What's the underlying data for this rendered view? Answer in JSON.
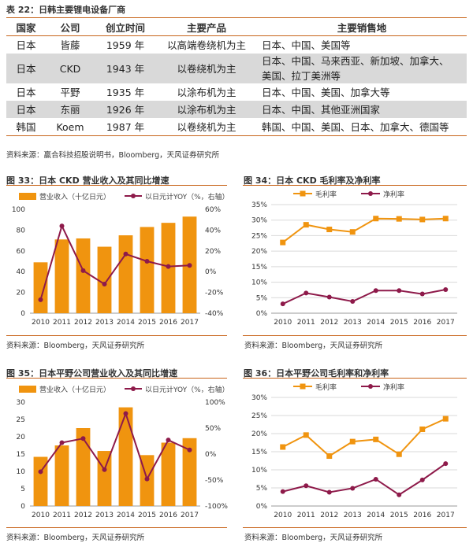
{
  "table": {
    "title": "表 22：日韩主要锂电设备厂商",
    "headers": [
      "国家",
      "公司",
      "创立时间",
      "主要产品",
      "主要销售地"
    ],
    "rows": [
      {
        "country": "日本",
        "company": "皆藤",
        "founded": "1959 年",
        "product": "以高端卷绕机为主",
        "markets": [
          "日本、中国、美国等"
        ],
        "shade": false
      },
      {
        "country": "日本",
        "company": "CKD",
        "founded": "1943 年",
        "product": "以卷绕机为主",
        "markets": [
          "日本、中国、马来西亚、新加坡、加拿大、",
          "美国、拉丁美洲等"
        ],
        "shade": true
      },
      {
        "country": "日本",
        "company": "平野",
        "founded": "1935 年",
        "product": "以涂布机为主",
        "markets": [
          "日本、中国、美国、加拿大等"
        ],
        "shade": false
      },
      {
        "country": "日本",
        "company": "东丽",
        "founded": "1926 年",
        "product": "以涂布机为主",
        "markets": [
          "日本、中国、其他亚洲国家"
        ],
        "shade": true
      },
      {
        "country": "韩国",
        "company": "Koem",
        "founded": "1987 年",
        "product": "以卷绕机为主",
        "markets": [
          "韩国、中国、美国、日本、加拿大、德国等"
        ],
        "shade": false
      }
    ],
    "source": "资料来源：赢合科技招股说明书，Bloomberg，天风证券研究所"
  },
  "colors": {
    "bar": "#f0940f",
    "line": "#8e1a4a",
    "orange_line": "#f0940f"
  },
  "chart_data": [
    {
      "type": "bar",
      "title": "图 33：日本 CKD 营业收入及其同比增速",
      "categories": [
        "2010",
        "2011",
        "2012",
        "2013",
        "2014",
        "2015",
        "2016",
        "2017"
      ],
      "series": [
        {
          "name": "营业收入（十亿日元）",
          "type": "bar",
          "axis": "left",
          "values": [
            49,
            71,
            72,
            64,
            75,
            83,
            87,
            93
          ]
        },
        {
          "name": "以日元计YOY（%，右轴）",
          "type": "line",
          "axis": "right",
          "values": [
            -27,
            44,
            1,
            -12,
            17,
            10,
            5,
            6
          ]
        }
      ],
      "ylim_left": [
        0,
        100
      ],
      "yticks_left": [
        "0",
        "20",
        "40",
        "60",
        "80",
        "100"
      ],
      "ylim_right": [
        -40,
        60
      ],
      "yticks_right": [
        "-40%",
        "-20%",
        "0%",
        "20%",
        "40%",
        "60%"
      ],
      "source": "资料来源：Bloomberg，天风证券研究所"
    },
    {
      "type": "line",
      "title": "图 34：日本 CKD 毛利率及净利率",
      "categories": [
        "2010",
        "2011",
        "2012",
        "2013",
        "2014",
        "2015",
        "2016",
        "2017"
      ],
      "series": [
        {
          "name": "毛利率",
          "marker": "square",
          "values": [
            22.8,
            28.5,
            27.0,
            26.2,
            30.5,
            30.4,
            30.2,
            30.5
          ]
        },
        {
          "name": "净利率",
          "marker": "circle",
          "values": [
            3.0,
            6.5,
            5.2,
            3.8,
            7.3,
            7.3,
            6.2,
            7.6
          ]
        }
      ],
      "ylim": [
        0,
        35
      ],
      "yticks": [
        "0%",
        "5%",
        "10%",
        "15%",
        "20%",
        "25%",
        "30%",
        "35%"
      ],
      "source": "资料来源：Bloomberg，天风证券研究所"
    },
    {
      "type": "bar",
      "title": "图 35：日本平野公司营业收入及其同比增速",
      "categories": [
        "2010",
        "2011",
        "2012",
        "2013",
        "2014",
        "2015",
        "2016",
        "2017"
      ],
      "series": [
        {
          "name": "营业收入（十亿日元）",
          "type": "bar",
          "axis": "left",
          "values": [
            14.2,
            17.5,
            22.5,
            15.9,
            28.5,
            14.7,
            18.3,
            19.6
          ]
        },
        {
          "name": "以日元计YOY（%，右轴）",
          "type": "line",
          "axis": "right",
          "values": [
            -34,
            22,
            30,
            -30,
            78,
            -48,
            27,
            8
          ]
        }
      ],
      "ylim_left": [
        0,
        30
      ],
      "yticks_left": [
        "0",
        "5",
        "10",
        "15",
        "20",
        "25",
        "30"
      ],
      "ylim_right": [
        -100,
        100
      ],
      "yticks_right": [
        "-100%",
        "-50%",
        "0%",
        "50%",
        "100%"
      ],
      "source": "资料来源：Bloomberg，天风证券研究所"
    },
    {
      "type": "line",
      "title": "图 36：日本平野公司毛利率和净利率",
      "categories": [
        "2010",
        "2011",
        "2012",
        "2013",
        "2014",
        "2015",
        "2016",
        "2017"
      ],
      "series": [
        {
          "name": "毛利率",
          "marker": "square",
          "values": [
            16.3,
            19.6,
            13.8,
            17.8,
            18.4,
            14.3,
            21.2,
            24.1
          ]
        },
        {
          "name": "净利率",
          "marker": "circle",
          "values": [
            4.0,
            5.6,
            3.8,
            4.9,
            7.4,
            3.1,
            7.2,
            11.7
          ]
        }
      ],
      "ylim": [
        0,
        30
      ],
      "yticks": [
        "0%",
        "5%",
        "10%",
        "15%",
        "20%",
        "25%",
        "30%"
      ],
      "source": "资料来源：Bloomberg，天风证券研究所"
    }
  ]
}
